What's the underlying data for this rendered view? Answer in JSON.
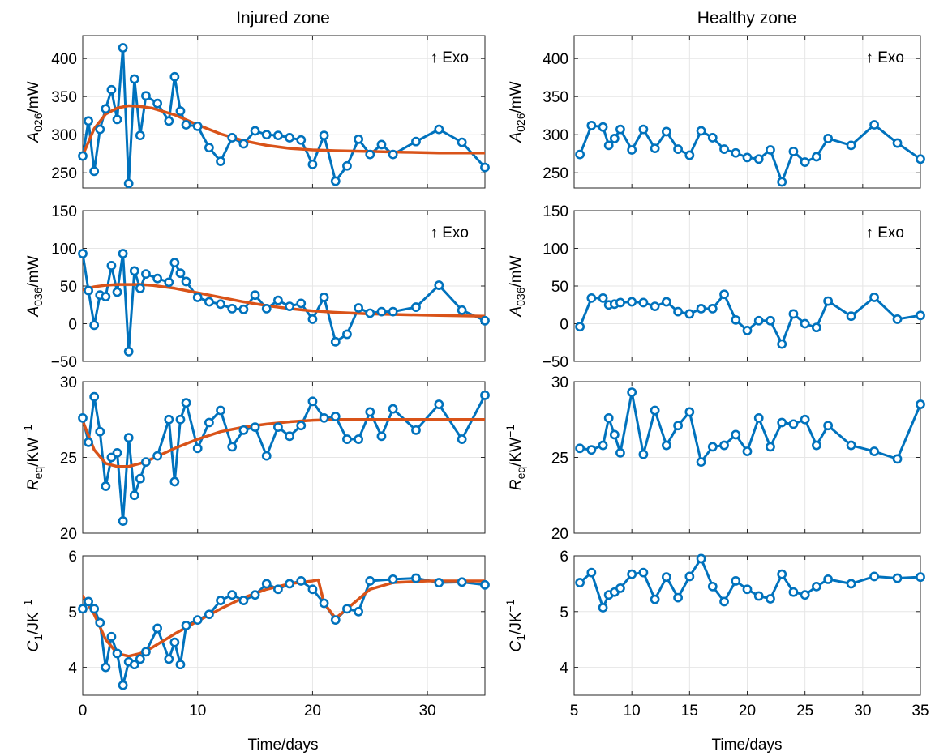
{
  "column_titles": [
    "Injured zone",
    "Healthy zone"
  ],
  "annotation": "↑ Exo",
  "xlabel": "Time/days",
  "colors": {
    "data": "#0072BD",
    "fit": "#D95319",
    "grid": "#e6e6e6",
    "axis": "#262626"
  },
  "row_ylabels": [
    {
      "sym": "A",
      "sub": "026",
      "sup": "",
      "unit": "/mW"
    },
    {
      "sym": "A",
      "sub": "036",
      "sup": "",
      "unit": "/mW"
    },
    {
      "sym": "R",
      "sub": "eq",
      "sup": "",
      "unit": "/KW",
      "unit_sup": "−1"
    },
    {
      "sym": "C",
      "sub": "1",
      "sup": "",
      "unit": "/JK",
      "unit_sup": "−1"
    }
  ],
  "chart_data": [
    {
      "panel": "injured-A026",
      "type": "line",
      "xlim": [
        0,
        35
      ],
      "ylim": [
        230,
        430
      ],
      "xticks": [
        0,
        10,
        20,
        30
      ],
      "yticks": [
        250,
        300,
        350,
        400
      ],
      "grid": true,
      "annotation": true,
      "series": [
        {
          "role": "measured",
          "marker": "circle",
          "x": [
            0,
            0.5,
            1,
            1.5,
            2,
            2.5,
            3,
            3.5,
            4,
            4.5,
            5,
            5.5,
            6.5,
            7.5,
            8,
            8.5,
            9,
            10,
            11,
            12,
            13,
            14,
            15,
            16,
            17,
            18,
            19,
            20,
            21,
            22,
            23,
            24,
            25,
            26,
            27,
            29,
            31,
            33,
            35
          ],
          "y": [
            272,
            318,
            252,
            307,
            334,
            359,
            320,
            414,
            236,
            373,
            299,
            351,
            341,
            318,
            376,
            331,
            313,
            311,
            283,
            265,
            296,
            288,
            305,
            300,
            299,
            296,
            293,
            261,
            299,
            239,
            259,
            294,
            274,
            287,
            274,
            291,
            307,
            290,
            257
          ]
        },
        {
          "role": "fit",
          "marker": "none",
          "x": [
            0,
            1,
            2,
            3,
            4,
            5,
            6,
            8,
            10,
            12,
            14,
            16,
            18,
            20,
            22,
            25,
            28,
            31,
            35
          ],
          "y": [
            273,
            308,
            327,
            335,
            338,
            337,
            335,
            326,
            313,
            301,
            292,
            286,
            282,
            280,
            279,
            278,
            277,
            276,
            276
          ]
        }
      ]
    },
    {
      "panel": "healthy-A026",
      "type": "line",
      "xlim": [
        5,
        35
      ],
      "ylim": [
        230,
        430
      ],
      "xticks": [
        5,
        10,
        15,
        20,
        25,
        30,
        35
      ],
      "yticks": [
        250,
        300,
        350,
        400
      ],
      "grid": true,
      "annotation": true,
      "series": [
        {
          "role": "measured",
          "marker": "circle",
          "x": [
            5.5,
            6.5,
            7.5,
            8,
            8.5,
            9,
            10,
            11,
            12,
            13,
            14,
            15,
            16,
            17,
            18,
            19,
            20,
            21,
            22,
            23,
            24,
            25,
            26,
            27,
            29,
            31,
            33,
            35
          ],
          "y": [
            274,
            312,
            310,
            286,
            295,
            307,
            280,
            307,
            282,
            304,
            281,
            273,
            305,
            296,
            281,
            276,
            270,
            268,
            280,
            238,
            278,
            264,
            271,
            295,
            286,
            313,
            289,
            268
          ]
        }
      ]
    },
    {
      "panel": "injured-A036",
      "type": "line",
      "xlim": [
        0,
        35
      ],
      "ylim": [
        -50,
        150
      ],
      "xticks": [
        0,
        10,
        20,
        30
      ],
      "yticks": [
        -50,
        0,
        50,
        100,
        150
      ],
      "grid": true,
      "annotation": true,
      "series": [
        {
          "role": "measured",
          "marker": "circle",
          "x": [
            0,
            0.5,
            1,
            1.5,
            2,
            2.5,
            3,
            3.5,
            4,
            4.5,
            5,
            5.5,
            6.5,
            7.5,
            8,
            8.5,
            9,
            10,
            11,
            12,
            13,
            14,
            15,
            16,
            17,
            18,
            19,
            20,
            21,
            22,
            23,
            24,
            25,
            26,
            27,
            29,
            31,
            33,
            35
          ],
          "y": [
            93,
            44,
            -2,
            38,
            36,
            77,
            42,
            93,
            -37,
            70,
            47,
            66,
            60,
            55,
            81,
            67,
            56,
            35,
            29,
            26,
            20,
            19,
            38,
            20,
            31,
            23,
            27,
            6,
            35,
            -24,
            -14,
            21,
            14,
            16,
            16,
            22,
            51,
            18,
            4
          ]
        },
        {
          "role": "fit",
          "marker": "none",
          "x": [
            0,
            1,
            2,
            3,
            4,
            5,
            6,
            8,
            10,
            12,
            14,
            16,
            18,
            20,
            22,
            25,
            28,
            31,
            35
          ],
          "y": [
            45,
            49,
            51,
            52,
            52,
            52,
            51,
            47,
            41,
            35,
            29,
            24,
            20,
            17,
            15,
            13,
            12,
            11,
            10
          ]
        }
      ]
    },
    {
      "panel": "healthy-A036",
      "type": "line",
      "xlim": [
        5,
        35
      ],
      "ylim": [
        -50,
        150
      ],
      "xticks": [
        5,
        10,
        15,
        20,
        25,
        30,
        35
      ],
      "yticks": [
        -50,
        0,
        50,
        100,
        150
      ],
      "grid": true,
      "annotation": true,
      "series": [
        {
          "role": "measured",
          "marker": "circle",
          "x": [
            5.5,
            6.5,
            7.5,
            8,
            8.5,
            9,
            10,
            11,
            12,
            13,
            14,
            15,
            16,
            17,
            18,
            19,
            20,
            21,
            22,
            23,
            24,
            25,
            26,
            27,
            29,
            31,
            33,
            35
          ],
          "y": [
            -4,
            34,
            34,
            25,
            26,
            28,
            29,
            28,
            23,
            29,
            16,
            13,
            20,
            20,
            39,
            5,
            -9,
            4,
            4,
            -27,
            13,
            0,
            -5,
            30,
            10,
            35,
            6,
            11
          ]
        }
      ]
    },
    {
      "panel": "injured-Req",
      "type": "line",
      "xlim": [
        0,
        35
      ],
      "ylim": [
        20,
        30
      ],
      "xticks": [
        0,
        10,
        20,
        30
      ],
      "yticks": [
        20,
        25,
        30
      ],
      "grid": true,
      "annotation": false,
      "series": [
        {
          "role": "measured",
          "marker": "circle",
          "x": [
            0,
            0.5,
            1,
            1.5,
            2,
            2.5,
            3,
            3.5,
            4,
            4.5,
            5,
            5.5,
            6.5,
            7.5,
            8,
            8.5,
            9,
            10,
            11,
            12,
            13,
            14,
            15,
            16,
            17,
            18,
            19,
            20,
            21,
            22,
            23,
            24,
            25,
            26,
            27,
            29,
            31,
            33,
            35
          ],
          "y": [
            27.6,
            26.0,
            29.0,
            26.7,
            23.1,
            25.0,
            25.3,
            20.8,
            26.3,
            22.5,
            23.6,
            24.7,
            25.1,
            27.5,
            23.4,
            27.5,
            28.6,
            25.6,
            27.3,
            28.1,
            25.7,
            26.8,
            27.0,
            25.1,
            27.0,
            26.4,
            27.1,
            28.7,
            27.6,
            27.7,
            26.2,
            26.2,
            28.0,
            26.4,
            28.2,
            26.8,
            28.5,
            26.2,
            29.1
          ]
        },
        {
          "role": "fit",
          "marker": "none",
          "x": [
            0,
            1,
            2,
            3,
            4,
            5,
            6,
            8,
            10,
            12,
            14,
            16,
            18,
            20,
            22,
            25,
            28,
            31,
            35
          ],
          "y": [
            27.4,
            25.5,
            24.6,
            24.4,
            24.4,
            24.6,
            24.9,
            25.6,
            26.2,
            26.7,
            27.0,
            27.2,
            27.35,
            27.45,
            27.5,
            27.5,
            27.5,
            27.5,
            27.5
          ]
        }
      ]
    },
    {
      "panel": "healthy-Req",
      "type": "line",
      "xlim": [
        5,
        35
      ],
      "ylim": [
        20,
        30
      ],
      "xticks": [
        5,
        10,
        15,
        20,
        25,
        30,
        35
      ],
      "yticks": [
        20,
        25,
        30
      ],
      "grid": true,
      "annotation": false,
      "series": [
        {
          "role": "measured",
          "marker": "circle",
          "x": [
            5.5,
            6.5,
            7.5,
            8,
            8.5,
            9,
            10,
            11,
            12,
            13,
            14,
            15,
            16,
            17,
            18,
            19,
            20,
            21,
            22,
            23,
            24,
            25,
            26,
            27,
            29,
            31,
            33,
            35
          ],
          "y": [
            25.6,
            25.5,
            25.8,
            27.6,
            26.5,
            25.3,
            29.3,
            25.2,
            28.1,
            25.8,
            27.1,
            28.0,
            24.7,
            25.7,
            25.8,
            26.5,
            25.4,
            27.6,
            25.7,
            27.3,
            27.2,
            27.5,
            25.8,
            27.1,
            25.8,
            25.4,
            24.9,
            28.5
          ]
        }
      ]
    },
    {
      "panel": "injured-C1",
      "type": "line",
      "xlim": [
        0,
        35
      ],
      "ylim": [
        3.5,
        6
      ],
      "xticks": [
        0,
        10,
        20,
        30
      ],
      "yticks": [
        4,
        5,
        6
      ],
      "grid": true,
      "annotation": false,
      "series": [
        {
          "role": "measured",
          "marker": "circle",
          "x": [
            0,
            0.5,
            1,
            1.5,
            2,
            2.5,
            3,
            3.5,
            4,
            4.5,
            5,
            5.5,
            6.5,
            7.5,
            8,
            8.5,
            9,
            10,
            11,
            12,
            13,
            14,
            15,
            16,
            17,
            18,
            19,
            20,
            21,
            22,
            23,
            24,
            25,
            27,
            29,
            31,
            33,
            35
          ],
          "y": [
            5.05,
            5.18,
            5.05,
            4.8,
            4.0,
            4.55,
            4.25,
            3.68,
            4.1,
            4.05,
            4.15,
            4.28,
            4.7,
            4.15,
            4.45,
            4.05,
            4.75,
            4.85,
            4.95,
            5.2,
            5.3,
            5.2,
            5.3,
            5.5,
            5.4,
            5.5,
            5.55,
            5.4,
            5.15,
            4.85,
            5.05,
            5.0,
            5.55,
            5.58,
            5.6,
            5.52,
            5.53,
            5.48
          ]
        },
        {
          "role": "fit",
          "marker": "none",
          "x": [
            0,
            1,
            2,
            3,
            4,
            5,
            6,
            8,
            10,
            12,
            14,
            16,
            18,
            20,
            20.5,
            21,
            22,
            23,
            25,
            27,
            30,
            35
          ],
          "y": [
            5.28,
            4.95,
            4.5,
            4.25,
            4.2,
            4.25,
            4.35,
            4.6,
            4.83,
            5.05,
            5.25,
            5.4,
            5.5,
            5.55,
            5.57,
            5.15,
            4.88,
            5.05,
            5.4,
            5.52,
            5.55,
            5.55
          ]
        }
      ]
    },
    {
      "panel": "healthy-C1",
      "type": "line",
      "xlim": [
        5,
        35
      ],
      "ylim": [
        3.5,
        6
      ],
      "xticks": [
        5,
        10,
        15,
        20,
        25,
        30,
        35
      ],
      "yticks": [
        4,
        5,
        6
      ],
      "grid": true,
      "annotation": false,
      "series": [
        {
          "role": "measured",
          "marker": "circle",
          "x": [
            5.5,
            6.5,
            7.5,
            8,
            8.5,
            9,
            10,
            11,
            12,
            13,
            14,
            15,
            16,
            17,
            18,
            19,
            20,
            21,
            22,
            23,
            24,
            25,
            26,
            27,
            29,
            31,
            33,
            35
          ],
          "y": [
            5.52,
            5.7,
            5.07,
            5.3,
            5.35,
            5.42,
            5.67,
            5.7,
            5.22,
            5.62,
            5.25,
            5.63,
            5.95,
            5.45,
            5.18,
            5.55,
            5.4,
            5.28,
            5.23,
            5.67,
            5.35,
            5.3,
            5.45,
            5.58,
            5.5,
            5.63,
            5.6,
            5.62
          ]
        }
      ]
    }
  ]
}
